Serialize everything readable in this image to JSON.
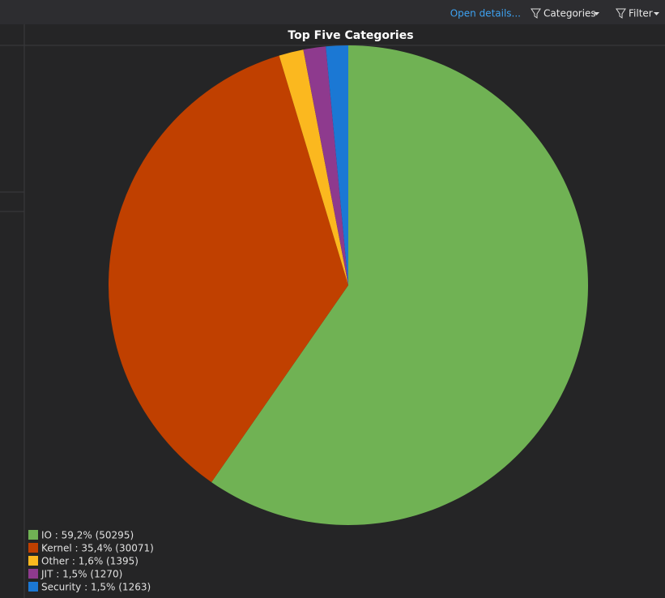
{
  "toolbar": {
    "open_details": "Open details...",
    "categories": "Categories",
    "filter": "Filter"
  },
  "chart_data": {
    "type": "pie",
    "title": "Top Five Categories",
    "values": [
      50295,
      30071,
      1395,
      1270,
      1263
    ],
    "value_labels": [
      "IO : 59,2% (50295)",
      "Kernel : 35,4% (30071)",
      "Other : 1,6% (1395)",
      "JIT : 1,5% (1270)",
      "Security : 1,5% (1263)"
    ],
    "colors": [
      "#70b254",
      "#c04000",
      "#fbb81f",
      "#8e3a8e",
      "#1b78d4"
    ],
    "legend": "bottom-left"
  }
}
